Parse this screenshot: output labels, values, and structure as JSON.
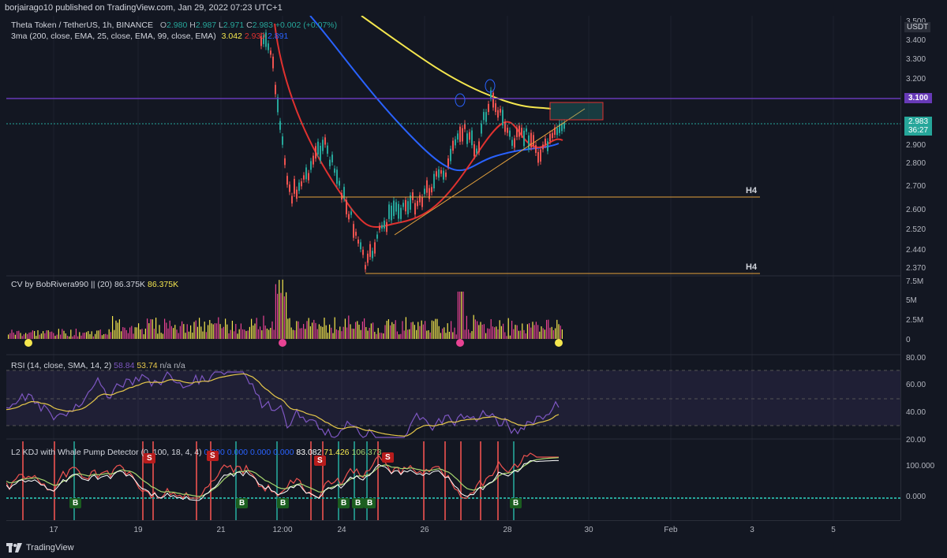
{
  "header": {
    "published": "borjairago10 published on TradingView.com, Jan 29, 2022 07:23 UTC+1"
  },
  "main": {
    "symbol": "Theta Token / TetherUS, 1h, BINANCE",
    "ohlc": {
      "o_label": "O",
      "o": "2.980",
      "h_label": "H",
      "h": "2.987",
      "l_label": "L",
      "l": "2.971",
      "c_label": "C",
      "c": "2.983",
      "chg": "+0.002 (+0.07%)"
    },
    "ma_label": "3ma (200, close, EMA, 25, close, EMA, 99, close, EMA)",
    "ma_values": [
      "3.042",
      "2.930",
      "2.891"
    ],
    "h4_upper": "H4",
    "h4_lower": "H4",
    "candles": [
      2.55,
      2.6,
      2.62,
      2.58,
      2.65,
      2.7,
      2.66,
      2.72,
      2.76,
      2.8,
      2.88,
      2.95,
      2.98,
      2.92,
      2.96,
      3.0,
      3.02,
      2.98,
      2.95,
      2.9,
      2.88,
      2.85,
      2.82,
      2.84,
      2.86,
      2.88,
      2.9,
      2.92,
      2.94,
      2.96,
      2.98,
      2.983
    ]
  },
  "cv": {
    "label": "CV by BobRivera990 || (20)",
    "v1": "86.375K",
    "v2": "86.375K"
  },
  "rsi": {
    "label": "RSI (14, close, SMA, 14, 2)",
    "v1": "58.84",
    "v2": "53.74",
    "v3": "n/a",
    "v4": "n/a"
  },
  "kdj": {
    "label": "L2 KDJ with Whale Pump Detector (0, 100, 18, 4, 4)",
    "v1": "0.000",
    "v2": "0.000",
    "v3": "0.000",
    "v4": "0.000",
    "v5": "83.082",
    "v6": "71.426",
    "v7": "106.373"
  },
  "price_scale": {
    "currency": "USDT",
    "ticks": [
      "3.400",
      "3.300",
      "3.200",
      "3.100",
      "2.983",
      "2.900",
      "2.800",
      "2.700",
      "2.600",
      "2.520",
      "2.440",
      "2.370"
    ],
    "top_partial": "3.500",
    "hline": "3.100",
    "last": "2.983",
    "countdown": "36:27"
  },
  "cv_scale": [
    "7.5M",
    "5M",
    "2.5M",
    "0"
  ],
  "rsi_scale": [
    "80.00",
    "60.00",
    "40.00",
    "20.00"
  ],
  "kdj_scale": [
    "100.000",
    "0.000"
  ],
  "time_scale": [
    "17",
    "19",
    "21",
    "12:00",
    "24",
    "26",
    "28",
    "30",
    "Feb",
    "3",
    "5"
  ],
  "markers": {
    "buy": "B",
    "sell": "S"
  },
  "footer": {
    "brand": "TradingView"
  },
  "colors": {
    "bg": "#131722",
    "ema200": "#f5e74e",
    "ema25": "#e0312f",
    "ema99": "#2962ff",
    "hline": "#673ab7",
    "h4": "#e6a23c",
    "up": "#26a69a",
    "down": "#ef5350",
    "rsi": "#7e57c2",
    "rsi_ma": "#e6c84a"
  }
}
